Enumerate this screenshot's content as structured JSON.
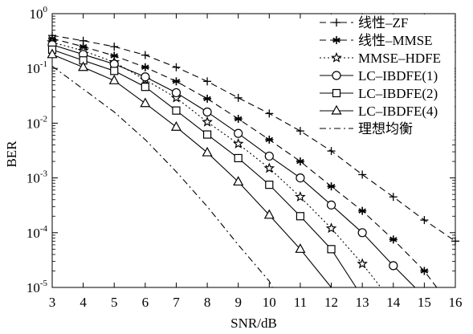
{
  "chart_data": {
    "type": "line",
    "xlabel": "SNR/dB",
    "ylabel": "BER",
    "xlim": [
      3,
      16
    ],
    "ylim": [
      1e-05,
      1
    ],
    "yscale": "log",
    "x_ticks": [
      "3",
      "4",
      "5",
      "6",
      "7",
      "8",
      "9",
      "10",
      "11",
      "12",
      "13",
      "14",
      "15",
      "16"
    ],
    "y_ticks": [
      {
        "value": 1,
        "base": "10",
        "exp": "0"
      },
      {
        "value": 0.1,
        "base": "10",
        "exp": "-1"
      },
      {
        "value": 0.01,
        "base": "10",
        "exp": "-2"
      },
      {
        "value": 0.001,
        "base": "10",
        "exp": "-3"
      },
      {
        "value": 0.0001,
        "base": "10",
        "exp": "-4"
      },
      {
        "value": 1e-05,
        "base": "10",
        "exp": "-5"
      }
    ],
    "grid": false,
    "legend_position": "top-right",
    "series": [
      {
        "name": "线性–ZF",
        "dash": "dash",
        "marker": "plus",
        "x": [
          3,
          4,
          5,
          6,
          7,
          8,
          9,
          10,
          11,
          12,
          13,
          14,
          15,
          16
        ],
        "y": [
          0.4,
          0.32,
          0.25,
          0.175,
          0.105,
          0.058,
          0.029,
          0.015,
          0.0072,
          0.0031,
          0.00115,
          0.00045,
          0.00017,
          7e-05
        ]
      },
      {
        "name": "线性–MMSE",
        "dash": "dash",
        "marker": "asterisk",
        "x": [
          3,
          4,
          5,
          6,
          7,
          8,
          9,
          10,
          11,
          12,
          13,
          14,
          15,
          15.4
        ],
        "y": [
          0.35,
          0.25,
          0.17,
          0.105,
          0.058,
          0.028,
          0.012,
          0.005,
          0.002,
          0.0007,
          0.00025,
          7.5e-05,
          2e-05,
          1e-05
        ]
      },
      {
        "name": "MMSE–HDFE",
        "dash": "dot",
        "marker": "star",
        "x": [
          3,
          4,
          5,
          6,
          7,
          8,
          9,
          10,
          11,
          12,
          13,
          13.6
        ],
        "y": [
          0.3,
          0.21,
          0.13,
          0.062,
          0.029,
          0.0105,
          0.0042,
          0.0015,
          0.00045,
          0.00012,
          2.7e-05,
          1e-05
        ]
      },
      {
        "name": "LC–IBDFE(1)",
        "dash": "solid",
        "marker": "circle",
        "x": [
          3,
          4,
          5,
          6,
          7,
          8,
          9,
          10,
          11,
          12,
          13,
          14,
          14.7
        ],
        "y": [
          0.27,
          0.18,
          0.12,
          0.07,
          0.036,
          0.016,
          0.0065,
          0.0025,
          0.001,
          0.00032,
          0.0001,
          2.5e-05,
          1e-05
        ]
      },
      {
        "name": "LC–IBDFE(2)",
        "dash": "solid",
        "marker": "square",
        "x": [
          3,
          4,
          5,
          6,
          7,
          8,
          9,
          10,
          11,
          12,
          12.8
        ],
        "y": [
          0.22,
          0.14,
          0.09,
          0.046,
          0.017,
          0.0062,
          0.0023,
          0.00075,
          0.0002,
          5e-05,
          1e-05
        ]
      },
      {
        "name": "LC–IBDFE(4)",
        "dash": "solid",
        "marker": "triangle",
        "x": [
          3,
          4,
          5,
          6,
          7,
          8,
          9,
          10,
          11,
          12
        ],
        "y": [
          0.18,
          0.105,
          0.06,
          0.023,
          0.0085,
          0.0029,
          0.00085,
          0.00021,
          5e-05,
          1e-05
        ]
      },
      {
        "name": "理想均衡",
        "dash": "dashdot",
        "marker": "none",
        "x": [
          3,
          4,
          5,
          6,
          7,
          8,
          9,
          10,
          10.1
        ],
        "y": [
          0.11,
          0.042,
          0.016,
          0.005,
          0.0013,
          0.0003,
          6e-05,
          1.3e-05,
          1e-05
        ]
      }
    ]
  }
}
